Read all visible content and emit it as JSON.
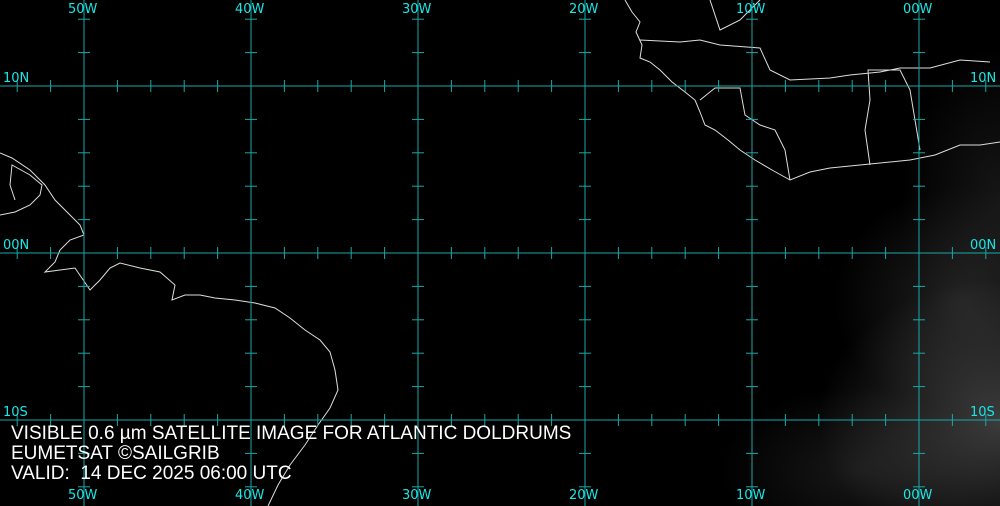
{
  "caption": {
    "line1": "VISIBLE 0.6 µm SATELLITE IMAGE FOR ATLANTIC DOLDRUMS",
    "line2": "EUMETSAT ©SAILGRIB",
    "line3": "VALID:  14 DEC 2025 06:00 UTC"
  },
  "grid": {
    "longitudes": [
      {
        "value": 50,
        "label": "50W"
      },
      {
        "value": 40,
        "label": "40W"
      },
      {
        "value": 30,
        "label": "30W"
      },
      {
        "value": 20,
        "label": "20W"
      },
      {
        "value": 10,
        "label": "10W"
      },
      {
        "value": 0,
        "label": "00W"
      }
    ],
    "latitudes": [
      {
        "value": 10,
        "label": "10N"
      },
      {
        "value": 0,
        "label": "00N"
      },
      {
        "value": -10,
        "label": "10S"
      }
    ],
    "tick_interval_deg": 2
  },
  "colors": {
    "grid": "#1aa8a8",
    "label": "#19e6e6",
    "coast": "#ffffff",
    "background": "#000000"
  }
}
